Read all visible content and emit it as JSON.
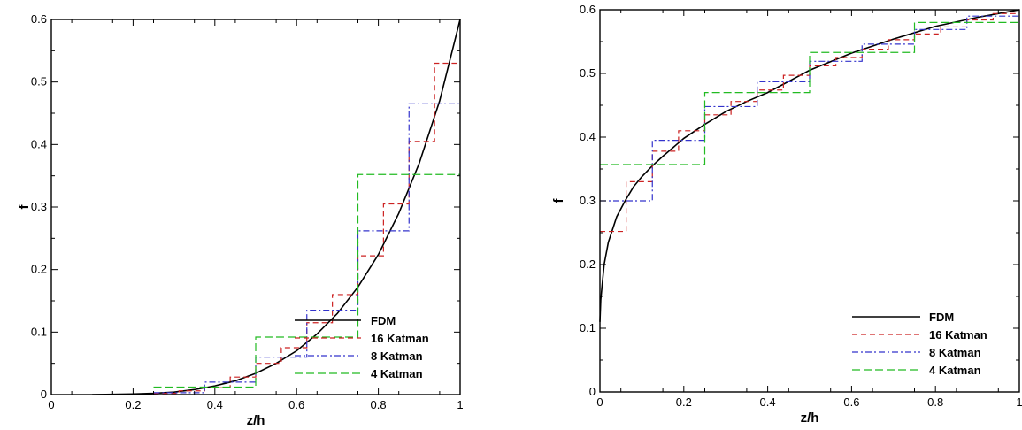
{
  "chart_data": [
    {
      "type": "line",
      "xlabel": "z/h",
      "ylabel": "f",
      "xlim": [
        0,
        1
      ],
      "ylim": [
        0,
        0.6
      ],
      "xticks": [
        0,
        0.2,
        0.4,
        0.6,
        0.8,
        1
      ],
      "xtick_labels": [
        "0",
        "0.2",
        "0.4",
        "0.6",
        "0.8",
        "1"
      ],
      "yticks": [
        0,
        0.1,
        0.2,
        0.3,
        0.4,
        0.5,
        0.6
      ],
      "ytick_labels": [
        "0",
        "0.1",
        "0.2",
        "0.3",
        "0.4",
        "0.5",
        "0.6"
      ],
      "grid": false,
      "legend_position": "bottom-right",
      "series": [
        {
          "name": "FDM",
          "style": "solid",
          "color": "#000000",
          "x": [
            0.1,
            0.15,
            0.2,
            0.25,
            0.3,
            0.35,
            0.4,
            0.45,
            0.5,
            0.55,
            0.6,
            0.65,
            0.7,
            0.75,
            0.8,
            0.85,
            0.9,
            0.95,
            1.0
          ],
          "y": [
            0.0,
            0.0005,
            0.001,
            0.002,
            0.004,
            0.008,
            0.014,
            0.022,
            0.034,
            0.05,
            0.07,
            0.097,
            0.13,
            0.172,
            0.224,
            0.29,
            0.37,
            0.47,
            0.6
          ]
        },
        {
          "name": "16 Katman",
          "style": "dashed",
          "color": "#cc2222",
          "steps": [
            [
              0.25,
              0.3125,
              0.002
            ],
            [
              0.3125,
              0.375,
              0.006
            ],
            [
              0.375,
              0.4375,
              0.011
            ],
            [
              0.4375,
              0.5,
              0.028
            ],
            [
              0.5,
              0.5625,
              0.05
            ],
            [
              0.5625,
              0.625,
              0.075
            ],
            [
              0.625,
              0.6875,
              0.115
            ],
            [
              0.6875,
              0.75,
              0.16
            ],
            [
              0.75,
              0.8125,
              0.222
            ],
            [
              0.8125,
              0.875,
              0.305
            ],
            [
              0.875,
              0.9375,
              0.405
            ],
            [
              0.9375,
              1.0,
              0.53
            ]
          ]
        },
        {
          "name": "8 Katman",
          "style": "dashdot",
          "color": "#3333cc",
          "steps": [
            [
              0.25,
              0.375,
              0.003
            ],
            [
              0.375,
              0.5,
              0.02
            ],
            [
              0.5,
              0.625,
              0.06
            ],
            [
              0.625,
              0.75,
              0.135
            ],
            [
              0.75,
              0.875,
              0.262
            ],
            [
              0.875,
              1.0,
              0.465
            ]
          ]
        },
        {
          "name": "4 Katman",
          "style": "longdash",
          "color": "#22bb22",
          "steps": [
            [
              0.25,
              0.5,
              0.012
            ],
            [
              0.5,
              0.75,
              0.092
            ],
            [
              0.75,
              1.0,
              0.352
            ]
          ]
        }
      ]
    },
    {
      "type": "line",
      "xlabel": "z/h",
      "ylabel": "f",
      "xlim": [
        0,
        1
      ],
      "ylim": [
        0,
        0.6
      ],
      "xticks": [
        0,
        0.2,
        0.4,
        0.6,
        0.8,
        1
      ],
      "xtick_labels": [
        "0",
        "0.2",
        "0.4",
        "0.6",
        "0.8",
        "1"
      ],
      "yticks": [
        0,
        0.1,
        0.2,
        0.3,
        0.4,
        0.5,
        0.6
      ],
      "ytick_labels": [
        "0",
        "0.1",
        "0.2",
        "0.3",
        "0.4",
        "0.5",
        "0.6"
      ],
      "grid": false,
      "legend_position": "bottom-right",
      "series": [
        {
          "name": "FDM",
          "style": "solid",
          "color": "#000000",
          "x": [
            0.0,
            0.002,
            0.01,
            0.02,
            0.04,
            0.06,
            0.08,
            0.1,
            0.125,
            0.15,
            0.2,
            0.25,
            0.3,
            0.35,
            0.4,
            0.5,
            0.6,
            0.7,
            0.8,
            0.9,
            1.0
          ],
          "y": [
            0.11,
            0.145,
            0.2,
            0.235,
            0.275,
            0.3,
            0.322,
            0.338,
            0.355,
            0.37,
            0.398,
            0.42,
            0.44,
            0.456,
            0.47,
            0.505,
            0.532,
            0.554,
            0.574,
            0.588,
            0.6
          ]
        },
        {
          "name": "16 Katman",
          "style": "dashed",
          "color": "#cc2222",
          "steps": [
            [
              0.0,
              0.0625,
              0.252
            ],
            [
              0.0625,
              0.125,
              0.33
            ],
            [
              0.125,
              0.1875,
              0.378
            ],
            [
              0.1875,
              0.25,
              0.41
            ],
            [
              0.25,
              0.3125,
              0.435
            ],
            [
              0.3125,
              0.375,
              0.456
            ],
            [
              0.375,
              0.4375,
              0.474
            ],
            [
              0.4375,
              0.5,
              0.497
            ],
            [
              0.5,
              0.5625,
              0.512
            ],
            [
              0.5625,
              0.625,
              0.525
            ],
            [
              0.625,
              0.6875,
              0.538
            ],
            [
              0.6875,
              0.75,
              0.553
            ],
            [
              0.75,
              0.8125,
              0.562
            ],
            [
              0.8125,
              0.875,
              0.573
            ],
            [
              0.875,
              0.9375,
              0.584
            ],
            [
              0.9375,
              1.0,
              0.594
            ]
          ]
        },
        {
          "name": "8 Katman",
          "style": "dashdot",
          "color": "#3333cc",
          "steps": [
            [
              0.0,
              0.125,
              0.3
            ],
            [
              0.125,
              0.25,
              0.395
            ],
            [
              0.25,
              0.375,
              0.448
            ],
            [
              0.375,
              0.5,
              0.487
            ],
            [
              0.5,
              0.625,
              0.519
            ],
            [
              0.625,
              0.75,
              0.546
            ],
            [
              0.75,
              0.875,
              0.569
            ],
            [
              0.875,
              1.0,
              0.59
            ]
          ]
        },
        {
          "name": "4 Katman",
          "style": "longdash",
          "color": "#22bb22",
          "steps": [
            [
              0.0,
              0.25,
              0.357
            ],
            [
              0.25,
              0.5,
              0.47
            ],
            [
              0.5,
              0.75,
              0.533
            ],
            [
              0.75,
              1.0,
              0.58
            ]
          ]
        }
      ]
    }
  ]
}
